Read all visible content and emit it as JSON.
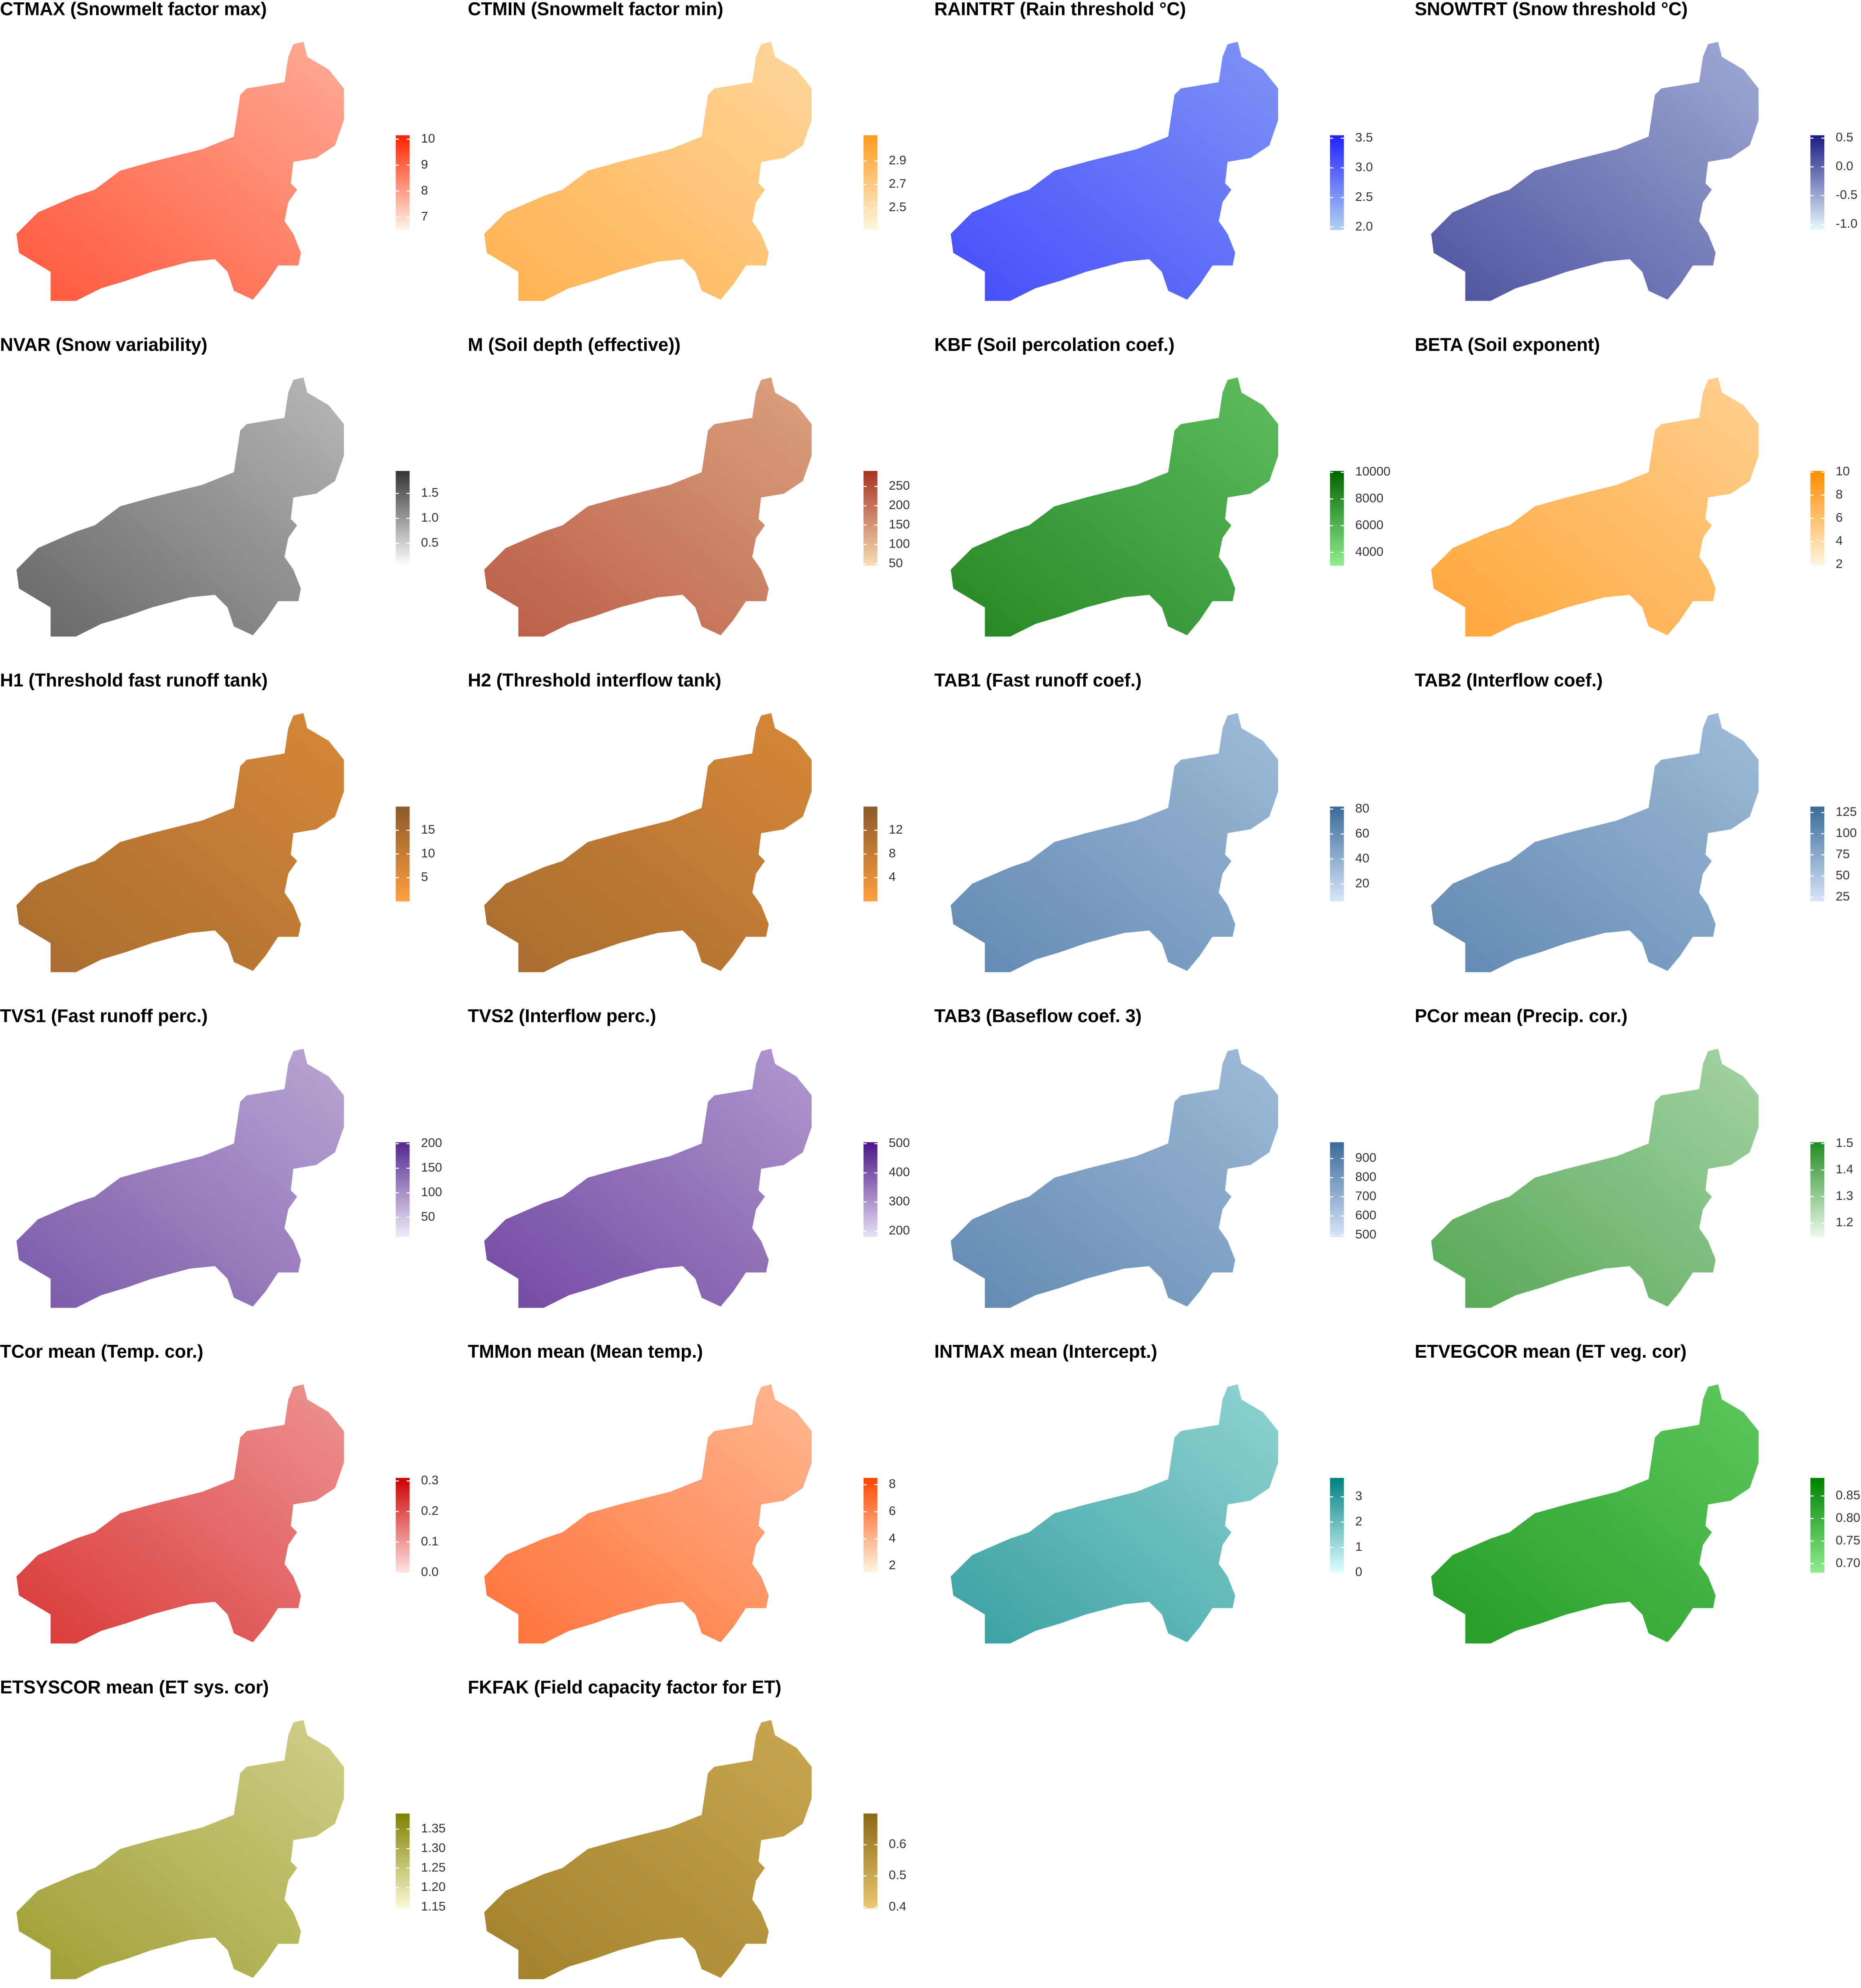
{
  "maps": [
    {
      "title": "CTMAX (Snowmelt factor max)",
      "colors": [
        "#fff5e6",
        "#ff2200"
      ],
      "lim": [
        6.5,
        10.15
      ],
      "ticks": [
        7,
        8,
        9,
        10
      ]
    },
    {
      "title": "CTMIN (Snowmelt factor min)",
      "colors": [
        "#fff6e0",
        "#ff9a1f"
      ],
      "lim": [
        2.31,
        3.12
      ],
      "ticks": [
        2.5,
        2.7,
        2.9
      ]
    },
    {
      "title": "RAINTRT (Rain threshold °C)",
      "colors": [
        "#b0d4f0",
        "#2020ff"
      ],
      "lim": [
        1.95,
        3.55
      ],
      "ticks": [
        {
          "value": 2,
          "label": "2.0"
        },
        2.5,
        {
          "value": 3,
          "label": "3.0"
        },
        3.5
      ]
    },
    {
      "title": "SNOWTRT (Snow threshold °C)",
      "colors": [
        "#e8f8ff",
        "#1a1a80"
      ],
      "lim": [
        -1.1,
        0.55
      ],
      "ticks": [
        {
          "value": -1,
          "label": "-1.0"
        },
        -0.5,
        {
          "value": 0,
          "label": "0.0"
        },
        0.5
      ]
    },
    {
      "title": "NVAR (Snow variability)",
      "colors": [
        "#ffffff",
        "#333333"
      ],
      "lim": [
        0.05,
        1.95
      ],
      "ticks": [
        0.5,
        {
          "value": 1,
          "label": "1.0"
        },
        1.5
      ]
    },
    {
      "title": "M (Soil depth (effective))",
      "colors": [
        "#f5deb3",
        "#a83222"
      ],
      "lim": [
        45,
        290
      ],
      "ticks": [
        50,
        100,
        150,
        200,
        250
      ]
    },
    {
      "title": "KBF (Soil percolation coef.)",
      "colors": [
        "#90ee90",
        "#006400"
      ],
      "lim": [
        3000,
        10100
      ],
      "ticks": [
        4000,
        6000,
        8000,
        10000
      ]
    },
    {
      "title": "BETA (Soil exponent)",
      "colors": [
        "#fff5e0",
        "#ff8c00"
      ],
      "lim": [
        1.9,
        10.1
      ],
      "ticks": [
        2,
        4,
        6,
        8,
        10
      ]
    },
    {
      "title": "H1 (Threshold fast runoff tank)",
      "colors": [
        "#ffa040",
        "#8b5a2b"
      ],
      "lim": [
        0,
        20
      ],
      "ticks": [
        5,
        10,
        15
      ]
    },
    {
      "title": "H2 (Threshold interflow tank)",
      "colors": [
        "#ffa040",
        "#8b5a2b"
      ],
      "lim": [
        0,
        16
      ],
      "ticks": [
        4,
        8,
        12
      ]
    },
    {
      "title": "TAB1 (Fast runoff coef.)",
      "colors": [
        "#d6e6fa",
        "#3a6a98"
      ],
      "lim": [
        6,
        82
      ],
      "ticks": [
        20,
        40,
        60,
        80
      ]
    },
    {
      "title": "TAB2 (Interflow coef.)",
      "colors": [
        "#d6e6fa",
        "#3a6a98"
      ],
      "lim": [
        20,
        132
      ],
      "ticks": [
        25,
        50,
        75,
        100,
        125
      ]
    },
    {
      "title": "TVS1 (Fast runoff perc.)",
      "colors": [
        "#f0ecf8",
        "#54278f"
      ],
      "lim": [
        10,
        203
      ],
      "ticks": [
        50,
        100,
        150,
        200
      ]
    },
    {
      "title": "TVS2 (Interflow perc.)",
      "colors": [
        "#e8e0f5",
        "#4a1486"
      ],
      "lim": [
        180,
        505
      ],
      "ticks": [
        200,
        300,
        400,
        500
      ]
    },
    {
      "title": "TAB3 (Baseflow coef. 3)",
      "colors": [
        "#d6e6fa",
        "#3a6a98"
      ],
      "lim": [
        490,
        985
      ],
      "ticks": [
        500,
        600,
        700,
        800,
        900
      ]
    },
    {
      "title": "PCor mean (Precip. cor.)",
      "colors": [
        "#ecf9ec",
        "#228b22"
      ],
      "lim": [
        1.147,
        1.505
      ],
      "ticks": [
        1.2,
        1.3,
        1.4,
        1.5
      ]
    },
    {
      "title": "TCor mean (Temp. cor.)",
      "colors": [
        "#ffe4e1",
        "#cc0000"
      ],
      "lim": [
        0,
        0.31
      ],
      "ticks": [
        {
          "value": 0,
          "label": "0.0"
        },
        0.1,
        0.2,
        0.3
      ]
    },
    {
      "title": "TMMon mean (Mean temp.)",
      "colors": [
        "#fff5e0",
        "#ff4500"
      ],
      "lim": [
        1.5,
        8.5
      ],
      "ticks": [
        2,
        4,
        6,
        8
      ]
    },
    {
      "title": "INTMAX mean (Intercept.)",
      "colors": [
        "#e0ffff",
        "#008080"
      ],
      "lim": [
        0,
        3.75
      ],
      "ticks": [
        0,
        1,
        2,
        3
      ]
    },
    {
      "title": "ETVEGCOR mean (ET veg. cor)",
      "colors": [
        "#90ee90",
        "#008000"
      ],
      "lim": [
        0.68,
        0.89
      ],
      "ticks": [
        {
          "value": 0.7,
          "label": "0.70"
        },
        0.75,
        {
          "value": 0.8,
          "label": "0.80"
        },
        0.85
      ]
    },
    {
      "title": "ETSYSCOR mean (ET sys. cor)",
      "colors": [
        "#fafad2",
        "#808000"
      ],
      "lim": [
        1.147,
        1.39
      ],
      "ticks": [
        1.15,
        {
          "value": 1.2,
          "label": "1.20"
        },
        1.25,
        {
          "value": 1.3,
          "label": "1.30"
        },
        1.35
      ]
    },
    {
      "title": "FKFAK (Field capacity factor for ET)",
      "colors": [
        "#e8c870",
        "#8b6914"
      ],
      "lim": [
        0.396,
        0.7
      ],
      "ticks": [
        0.4,
        0.5,
        0.6
      ]
    }
  ]
}
